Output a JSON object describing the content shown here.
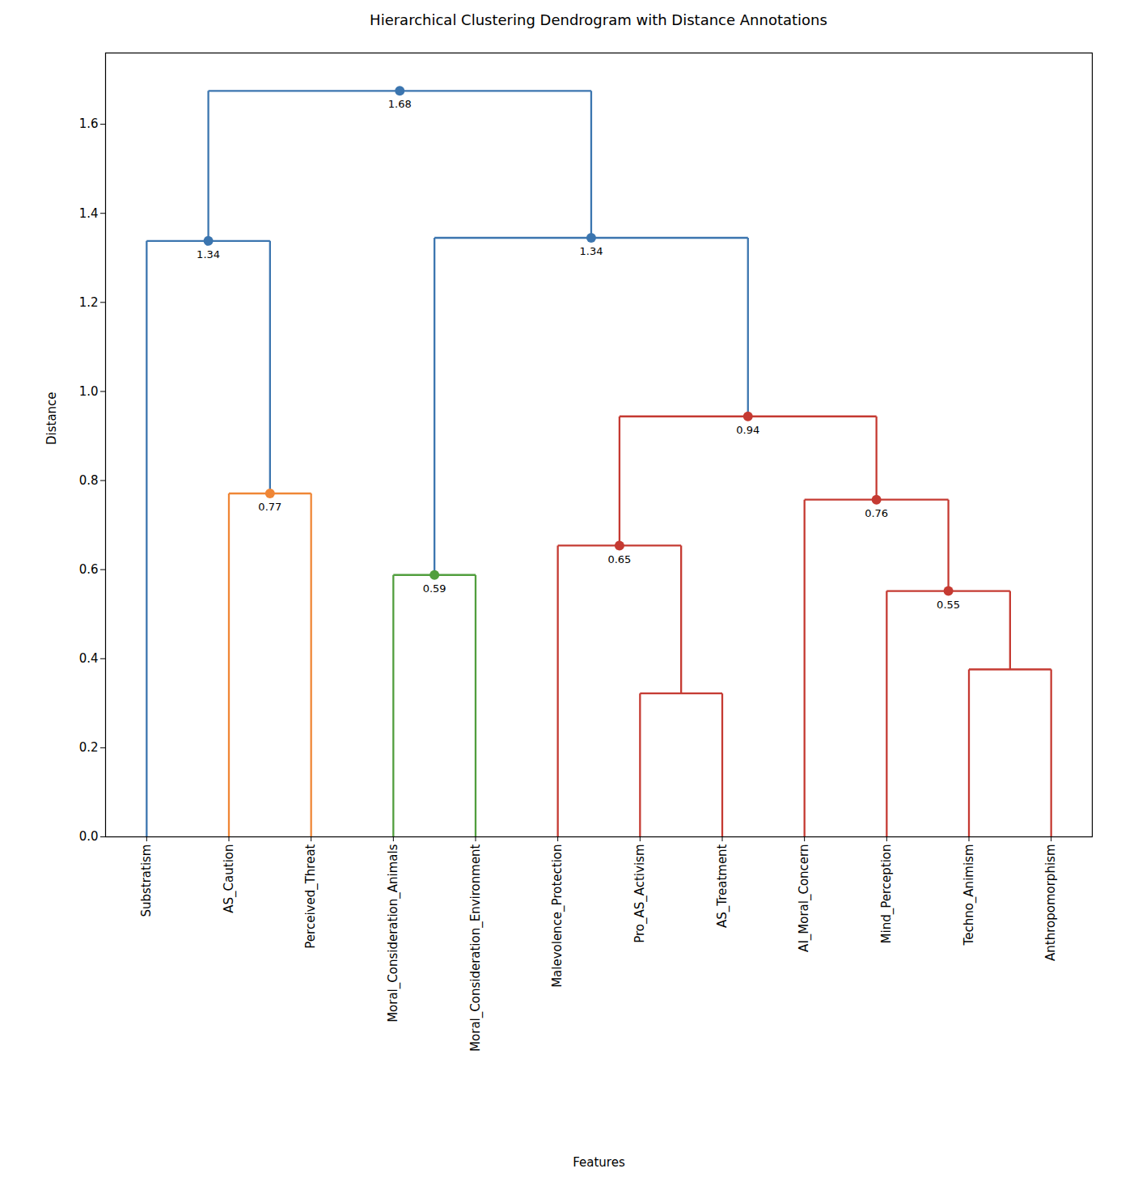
{
  "chart_data": {
    "type": "dendrogram",
    "title": "Hierarchical Clustering Dendrogram with Distance Annotations",
    "x_label": "Features",
    "y_label": "Distance",
    "leaves": [
      "Substratism",
      "AS_Caution",
      "Perceived_Threat",
      "Moral_Consideration_Animals",
      "Moral_Consideration_Environment",
      "Malevolence_Protection",
      "Pro_AS_Activism",
      "AS_Treatment",
      "AI_Moral_Concern",
      "Mind_Perception",
      "Techno_Animism",
      "Anthropomorphism"
    ],
    "merges": [
      {
        "left": 6,
        "right": 7,
        "height": 0.322,
        "color": "#c53a32"
      },
      {
        "left": 10,
        "right": 11,
        "height": 0.376,
        "color": "#c53a32"
      },
      {
        "left": 9,
        "right": 13,
        "height": 0.552,
        "label": "0.55",
        "color": "#c53a32"
      },
      {
        "left": 3,
        "right": 4,
        "height": 0.588,
        "label": "0.59",
        "color": "#519e3e"
      },
      {
        "left": 5,
        "right": 12,
        "height": 0.654,
        "label": "0.65",
        "color": "#c53a32"
      },
      {
        "left": 8,
        "right": 14,
        "height": 0.757,
        "label": "0.76",
        "color": "#c53a32"
      },
      {
        "left": 1,
        "right": 2,
        "height": 0.771,
        "label": "0.77",
        "color": "#ef8636"
      },
      {
        "left": 16,
        "right": 17,
        "height": 0.944,
        "label": "0.94",
        "color": "#c53a32"
      },
      {
        "left": 0,
        "right": 18,
        "height": 1.338,
        "label": "1.34",
        "color": "#3b75af"
      },
      {
        "left": 15,
        "right": 19,
        "height": 1.345,
        "label": "1.34",
        "color": "#3b75af"
      },
      {
        "left": 20,
        "right": 21,
        "height": 1.675,
        "label": "1.68",
        "color": "#3b75af"
      }
    ],
    "ylim": [
      0,
      1.76
    ],
    "yticks": [
      {
        "value": 0,
        "label": "0.0"
      },
      0.2,
      0.4,
      0.6,
      0.8,
      {
        "value": 1,
        "label": "1.0"
      },
      1.2,
      1.4,
      1.6
    ]
  }
}
